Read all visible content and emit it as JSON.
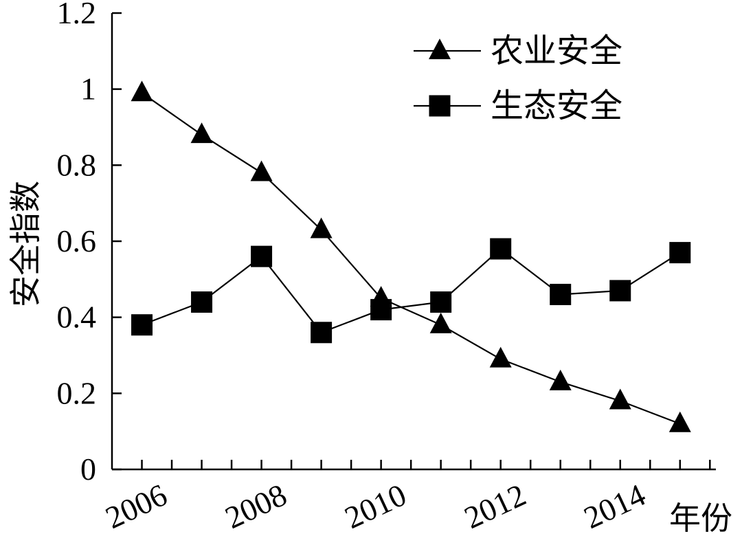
{
  "chart_data": {
    "type": "line",
    "title": "",
    "xlabel": "年份",
    "ylabel": "安全指数",
    "ylim": [
      0,
      1.2
    ],
    "yticks": [
      "0",
      "0.2",
      "0.4",
      "0.6",
      "0.8",
      "1",
      "1.2"
    ],
    "xtick_labels": [
      "2006",
      "2008",
      "2010",
      "2012",
      "2014"
    ],
    "x": [
      2006,
      2007,
      2008,
      2009,
      2010,
      2011,
      2012,
      2013,
      2014,
      2015
    ],
    "grid": false,
    "legend_position": "top-right",
    "series": [
      {
        "name": "农业安全",
        "marker": "triangle",
        "values": [
          0.99,
          0.88,
          0.78,
          0.63,
          0.45,
          0.38,
          0.29,
          0.23,
          0.18,
          0.12
        ]
      },
      {
        "name": "生态安全",
        "marker": "square",
        "values": [
          0.38,
          0.44,
          0.56,
          0.36,
          0.42,
          0.44,
          0.58,
          0.46,
          0.47,
          0.57
        ]
      }
    ]
  }
}
